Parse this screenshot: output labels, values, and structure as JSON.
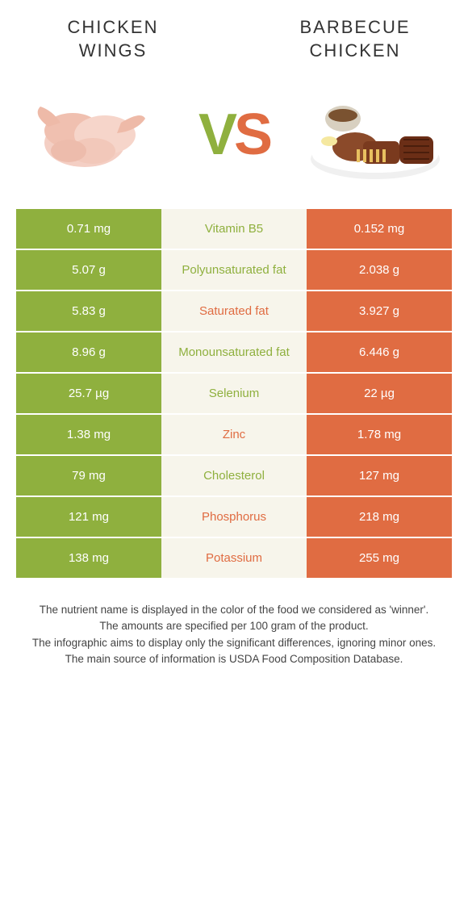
{
  "leftFood": {
    "title1": "CHICKEN",
    "title2": "WINGS",
    "color": "#8fb03e"
  },
  "rightFood": {
    "title1": "BARBECUE",
    "title2": "CHICKEN",
    "color": "#e06c42"
  },
  "vs": {
    "v": "V",
    "s": "S"
  },
  "rows": [
    {
      "left": "0.71 mg",
      "label": "Vitamin B5",
      "right": "0.152 mg",
      "winner": "left"
    },
    {
      "left": "5.07 g",
      "label": "Polyunsaturated fat",
      "right": "2.038 g",
      "winner": "left"
    },
    {
      "left": "5.83 g",
      "label": "Saturated fat",
      "right": "3.927 g",
      "winner": "right"
    },
    {
      "left": "8.96 g",
      "label": "Monounsaturated fat",
      "right": "6.446 g",
      "winner": "left"
    },
    {
      "left": "25.7 µg",
      "label": "Selenium",
      "right": "22 µg",
      "winner": "left"
    },
    {
      "left": "1.38 mg",
      "label": "Zinc",
      "right": "1.78 mg",
      "winner": "right"
    },
    {
      "left": "79 mg",
      "label": "Cholesterol",
      "right": "127 mg",
      "winner": "left"
    },
    {
      "left": "121 mg",
      "label": "Phosphorus",
      "right": "218 mg",
      "winner": "right"
    },
    {
      "left": "138 mg",
      "label": "Potassium",
      "right": "255 mg",
      "winner": "right"
    }
  ],
  "footnotes": [
    "The nutrient name is displayed in the color of the food we considered as 'winner'.",
    "The amounts are specified per 100 gram of the product.",
    "The infographic aims to display only the significant differences, ignoring minor ones.",
    "The main source of information is USDA Food Composition Database."
  ],
  "style": {
    "left_color": "#8fb03e",
    "right_color": "#e06c42",
    "mid_bg": "#f7f5eb",
    "title_fontsize": 22,
    "vs_fontsize": 72,
    "cell_fontsize": 15,
    "footnote_fontsize": 13.5
  }
}
